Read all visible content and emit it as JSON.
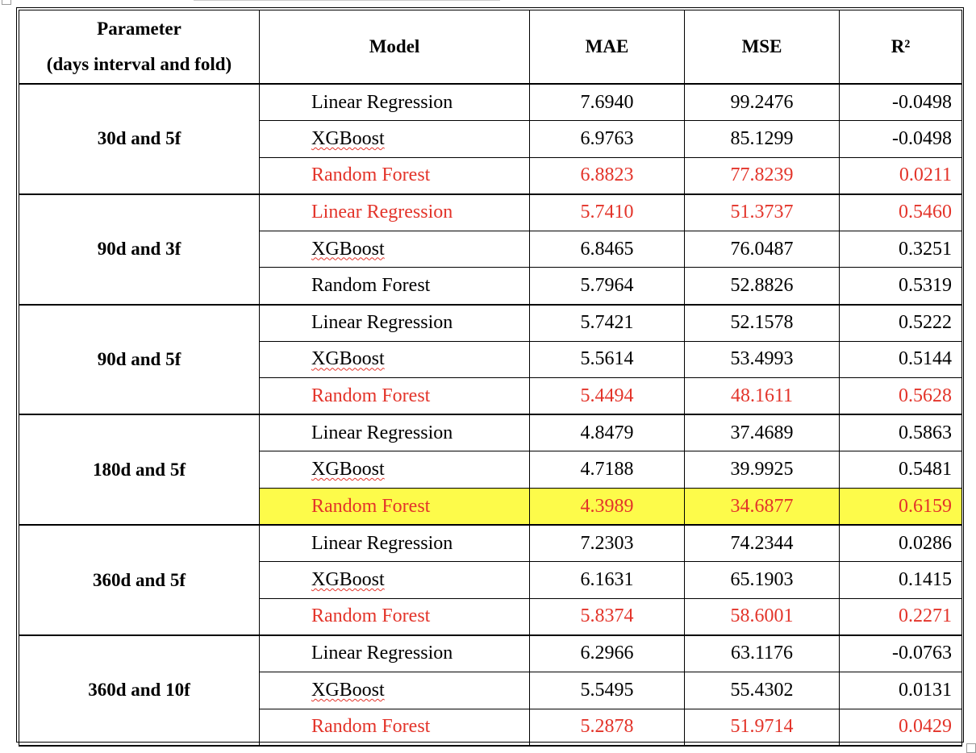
{
  "table": {
    "headers": {
      "parameter_line1": "Parameter",
      "parameter_line2": "(days interval and fold)",
      "model": "Model",
      "mae": "MAE",
      "mse": "MSE",
      "r2": "R²"
    },
    "groups": [
      {
        "parameter": "30d and 5f",
        "rows": [
          {
            "model": "Linear Regression",
            "mae": "7.6940",
            "mse": "99.2476",
            "r2": "-0.0498",
            "highlight": "none"
          },
          {
            "model": "XGBoost",
            "mae": "6.9763",
            "mse": "85.1299",
            "r2": "-0.0498",
            "highlight": "none"
          },
          {
            "model": "Random Forest",
            "mae": "6.8823",
            "mse": "77.8239",
            "r2": "0.0211",
            "highlight": "red"
          }
        ]
      },
      {
        "parameter": "90d and 3f",
        "rows": [
          {
            "model": "Linear Regression",
            "mae": "5.7410",
            "mse": "51.3737",
            "r2": "0.5460",
            "highlight": "red"
          },
          {
            "model": "XGBoost",
            "mae": "6.8465",
            "mse": "76.0487",
            "r2": "0.3251",
            "highlight": "none"
          },
          {
            "model": "Random Forest",
            "mae": "5.7964",
            "mse": "52.8826",
            "r2": "0.5319",
            "highlight": "none"
          }
        ]
      },
      {
        "parameter": "90d and 5f",
        "rows": [
          {
            "model": "Linear Regression",
            "mae": "5.7421",
            "mse": "52.1578",
            "r2": "0.5222",
            "highlight": "none"
          },
          {
            "model": "XGBoost",
            "mae": "5.5614",
            "mse": "53.4993",
            "r2": "0.5144",
            "highlight": "none"
          },
          {
            "model": "Random Forest",
            "mae": "5.4494",
            "mse": "48.1611",
            "r2": "0.5628",
            "highlight": "red"
          }
        ]
      },
      {
        "parameter": "180d and 5f",
        "rows": [
          {
            "model": "Linear Regression",
            "mae": "4.8479",
            "mse": "37.4689",
            "r2": "0.5863",
            "highlight": "none"
          },
          {
            "model": "XGBoost",
            "mae": "4.7188",
            "mse": "39.9925",
            "r2": "0.5481",
            "highlight": "none"
          },
          {
            "model": "Random Forest",
            "mae": "4.3989",
            "mse": "34.6877",
            "r2": "0.6159",
            "highlight": "red-yellow"
          }
        ]
      },
      {
        "parameter": "360d and 5f",
        "rows": [
          {
            "model": "Linear Regression",
            "mae": "7.2303",
            "mse": "74.2344",
            "r2": "0.0286",
            "highlight": "none"
          },
          {
            "model": "XGBoost",
            "mae": "6.1631",
            "mse": "65.1903",
            "r2": "0.1415",
            "highlight": "none"
          },
          {
            "model": "Random Forest",
            "mae": "5.8374",
            "mse": "58.6001",
            "r2": "0.2271",
            "highlight": "red"
          }
        ]
      },
      {
        "parameter": "360d and 10f",
        "rows": [
          {
            "model": "Linear Regression",
            "mae": "6.2966",
            "mse": "63.1176",
            "r2": "-0.0763",
            "highlight": "none"
          },
          {
            "model": "XGBoost",
            "mae": "5.5495",
            "mse": "55.4302",
            "r2": "0.0131",
            "highlight": "none"
          },
          {
            "model": "Random Forest",
            "mae": "5.2878",
            "mse": "51.9714",
            "r2": "0.0429",
            "highlight": "red"
          }
        ]
      }
    ]
  },
  "colors": {
    "highlight_text": "#e3342a",
    "highlight_fill": "#fdfb4a",
    "spellcheck_underline": "#e3342a"
  }
}
